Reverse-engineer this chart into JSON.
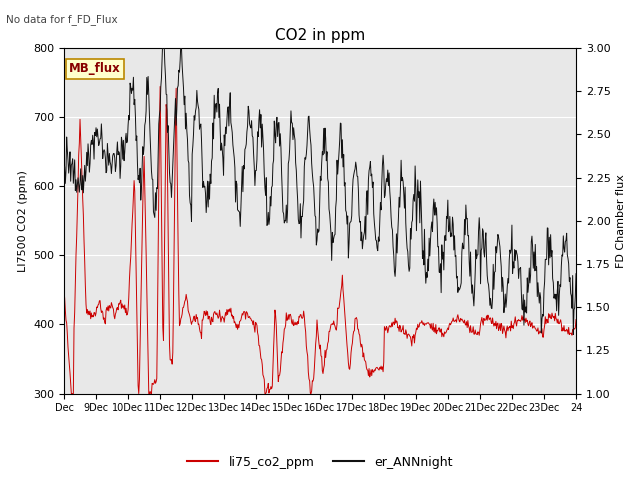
{
  "title": "CO2 in ppm",
  "top_left_text": "No data for f_FD_Flux",
  "ylabel_left": "LI7500 CO2 (ppm)",
  "ylabel_right": "FD Chamber flux",
  "ylim_left": [
    300,
    800
  ],
  "ylim_right": [
    1.0,
    3.0
  ],
  "xlim": [
    0,
    16
  ],
  "xtick_labels": [
    "Dec",
    "9Dec",
    "10Dec",
    "11Dec",
    "12Dec",
    "13Dec",
    "14Dec",
    "15Dec",
    "16Dec",
    "17Dec",
    "18Dec",
    "19Dec",
    "20Dec",
    "21Dec",
    "22Dec",
    "23Dec",
    "24"
  ],
  "legend_box_label": "MB_flux",
  "legend_items": [
    "li75_co2_ppm",
    "er_ANNnight"
  ],
  "legend_colors": [
    "#cc0000",
    "#111111"
  ],
  "background_color": "#e8e8e8",
  "line_color_red": "#cc0000",
  "line_color_black": "#111111",
  "fig_width": 6.4,
  "fig_height": 4.8,
  "dpi": 100
}
